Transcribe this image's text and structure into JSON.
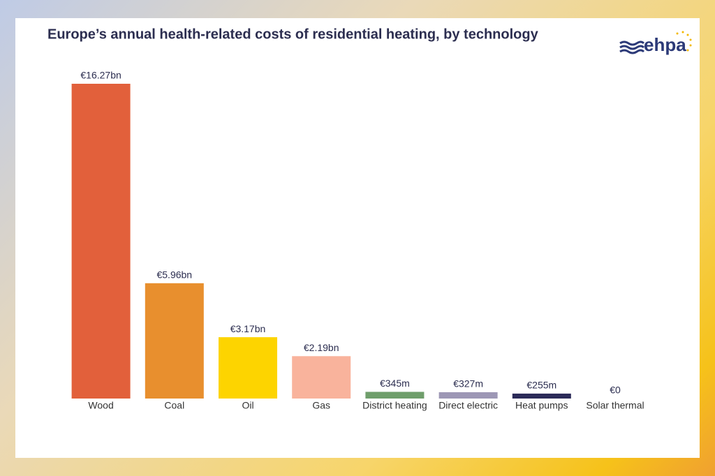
{
  "chart_data": {
    "type": "bar",
    "title": "Europe’s annual health-related costs of residential heating, by technology",
    "logo": "ehpa",
    "categories": [
      "Wood",
      "Coal",
      "Oil",
      "Gas",
      "District heating",
      "Direct electric",
      "Heat pumps",
      "Solar thermal"
    ],
    "values": [
      16.27,
      5.96,
      3.17,
      2.19,
      0.345,
      0.327,
      0.255,
      0
    ],
    "value_labels": [
      "€16.27bn",
      "€5.96bn",
      "€3.17bn",
      "€2.19bn",
      "€345m",
      "€327m",
      "€255m",
      "€0"
    ],
    "colors": [
      "#e2603b",
      "#e88f2e",
      "#fdd400",
      "#f9b39c",
      "#6f9e6b",
      "#9d97b5",
      "#2b2a58",
      "#f3c74a"
    ]
  }
}
